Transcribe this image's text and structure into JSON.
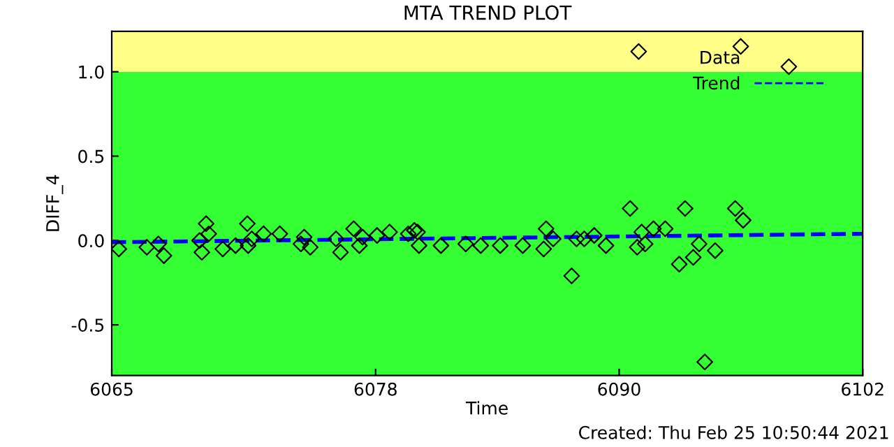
{
  "chart_data": {
    "type": "scatter",
    "title": "MTA TREND PLOT",
    "xlabel": "Time",
    "ylabel": "DIFF_4",
    "xlim": [
      6065,
      6102
    ],
    "xticks": [
      6065,
      6078,
      6090,
      6102
    ],
    "ylim": [
      -0.8,
      1.24
    ],
    "yticks": [
      {
        "value": -0.5,
        "label": "-0.5"
      },
      {
        "value": 0,
        "label": "0.0"
      },
      {
        "value": 0.5,
        "label": "0.5"
      },
      {
        "value": 1,
        "label": "1.0"
      }
    ],
    "grid": false,
    "legend": "top right",
    "bands": [
      {
        "axis": "y",
        "from": -0.8,
        "to": 1.0,
        "color": "#33ff33"
      },
      {
        "axis": "y",
        "from": 1.0,
        "to": 1.24,
        "color": "#ffff88"
      }
    ],
    "annotations": [
      "Created: Thu Feb 25 10:50:44 2021"
    ],
    "series": [
      {
        "name": "Data",
        "color": "#000000",
        "marker": "diamond",
        "x": [
          6065.35,
          6066.73,
          6067.3,
          6067.57,
          6069.33,
          6069.44,
          6069.65,
          6069.78,
          6070.47,
          6071.1,
          6071.68,
          6071.72,
          6071.9,
          6072.48,
          6073.28,
          6074.32,
          6074.48,
          6074.78,
          6076.05,
          6076.27,
          6076.92,
          6077.2,
          6077.36,
          6078.07,
          6078.69,
          6079.61,
          6079.91,
          6080.07,
          6080.14,
          6081.22,
          6082.44,
          6083.18,
          6084.14,
          6085.25,
          6086.28,
          6086.4,
          6086.75,
          6087.66,
          6087.9,
          6088.28,
          6088.77,
          6089.35,
          6090.54,
          6090.89,
          6090.96,
          6091.11,
          6091.28,
          6091.69,
          6092.27,
          6092.96,
          6093.25,
          6093.65,
          6093.94,
          6094.22,
          6094.73,
          6095.72,
          6096.11,
          6095.99,
          6098.36
        ],
        "values": [
          -0.05,
          -0.04,
          -0.02,
          -0.09,
          0.0,
          -0.07,
          0.1,
          0.04,
          -0.05,
          -0.03,
          0.1,
          -0.03,
          0.01,
          0.04,
          0.04,
          -0.02,
          0.02,
          -0.04,
          0.01,
          -0.07,
          0.07,
          -0.03,
          0.02,
          0.03,
          0.05,
          0.04,
          0.06,
          0.05,
          -0.03,
          -0.03,
          -0.02,
          -0.03,
          -0.03,
          -0.03,
          -0.05,
          0.07,
          0.01,
          -0.21,
          0.01,
          0.01,
          0.03,
          -0.03,
          0.19,
          -0.04,
          1.12,
          0.05,
          -0.02,
          0.07,
          0.07,
          -0.14,
          0.19,
          -0.1,
          -0.02,
          -0.72,
          -0.06,
          0.19,
          0.12,
          1.15,
          1.03
        ]
      },
      {
        "name": "Trend",
        "type": "line",
        "color": "#0000ff",
        "line_style": "dashed",
        "x": [
          6065,
          6102
        ],
        "values": [
          -0.01,
          0.04
        ]
      }
    ]
  }
}
